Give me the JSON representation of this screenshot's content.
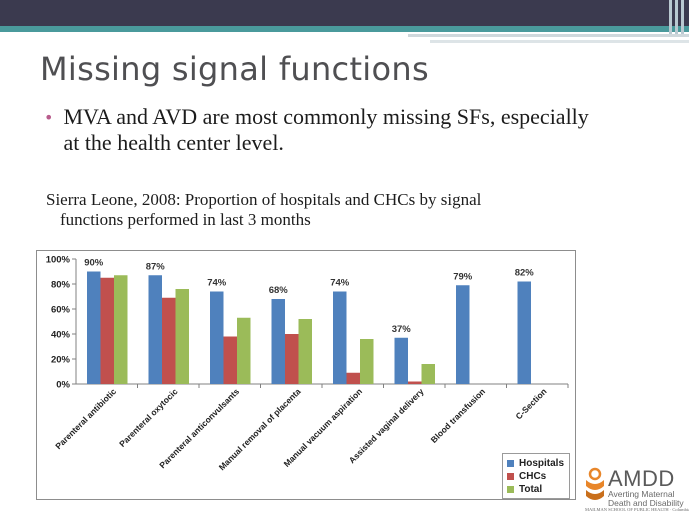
{
  "slide": {
    "title": "Missing signal functions",
    "bullet": "MVA and AVD are most commonly missing SFs, especially at the health center level.",
    "caption_line1": "Sierra Leone, 2008: Proportion of hospitals and CHCs by signal",
    "caption_line2": "functions performed in last 3 months"
  },
  "colors": {
    "header_bar": "#3b3a4f",
    "accent_teal": "#4a9a9c",
    "bullet": "#b85c8c"
  },
  "chart_data": {
    "type": "bar",
    "title": "",
    "xlabel": "",
    "ylabel": "",
    "ylim": [
      0,
      100
    ],
    "y_ticks": [
      "0%",
      "20%",
      "40%",
      "60%",
      "80%",
      "100%"
    ],
    "categories": [
      "Parenteral antibiotic",
      "Parenteral oxytocic",
      "Parenteral anticonvulsants",
      "Manual removal of placenta",
      "Manual vacuum aspiration",
      "Assisted vaginal delivery",
      "Blood transfusion",
      "C-Section"
    ],
    "series": [
      {
        "name": "Hospitals",
        "color": "#4f81bd",
        "values": [
          90,
          87,
          74,
          68,
          74,
          37,
          79,
          82
        ]
      },
      {
        "name": "CHCs",
        "color": "#c0504d",
        "values": [
          85,
          69,
          38,
          40,
          9,
          2,
          0,
          0
        ]
      },
      {
        "name": "Total",
        "color": "#9bbb59",
        "values": [
          87,
          76,
          53,
          52,
          36,
          16,
          0,
          0
        ]
      }
    ],
    "data_labels": [
      "90%",
      "87%",
      "74%",
      "68%",
      "74%",
      "37%",
      "79%",
      "82%"
    ],
    "grid": false,
    "legend_position": "bottom-right"
  },
  "logo": {
    "name": "AMDD",
    "line1": "Averting Maternal",
    "line2": "Death and Disability",
    "school": "MAILMAN SCHOOL OF PUBLIC HEALTH · Columbia University"
  }
}
